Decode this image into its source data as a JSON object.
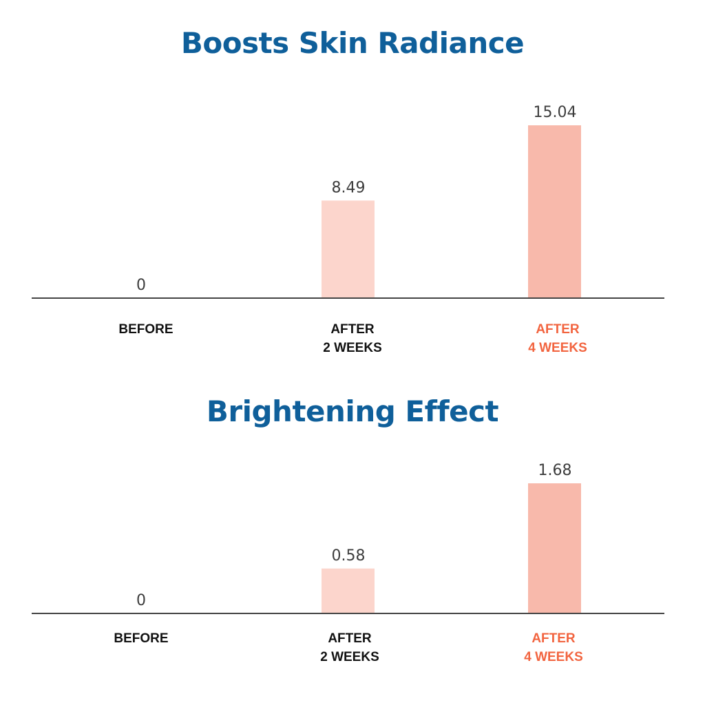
{
  "colors": {
    "title": "#0f5f9a",
    "axis": "#444444",
    "value_text": "#3d3d3d",
    "category_text": "#111111",
    "highlight_text": "#f2643f",
    "bar_2w": "#fcd5cc",
    "bar_4w": "#f8b9ab"
  },
  "chart_data": [
    {
      "type": "bar",
      "title": "Boosts Skin Radiance",
      "categories": [
        [
          "BEFORE"
        ],
        [
          "AFTER",
          "2 WEEKS"
        ],
        [
          "AFTER",
          "4 WEEKS"
        ]
      ],
      "values": [
        0,
        8.49,
        15.04
      ],
      "value_labels": [
        "0",
        "8.49",
        "15.04"
      ],
      "highlight_index": 2,
      "ylim": [
        0,
        15.04
      ],
      "grid": false,
      "legend": "none"
    },
    {
      "type": "bar",
      "title": "Brightening Effect",
      "categories": [
        [
          "BEFORE"
        ],
        [
          "AFTER",
          "2 WEEKS"
        ],
        [
          "AFTER",
          "4 WEEKS"
        ]
      ],
      "values": [
        0,
        0.58,
        1.68
      ],
      "value_labels": [
        "0",
        "0.58",
        "1.68"
      ],
      "highlight_index": 2,
      "ylim": [
        0,
        1.68
      ],
      "grid": false,
      "legend": "none"
    }
  ]
}
